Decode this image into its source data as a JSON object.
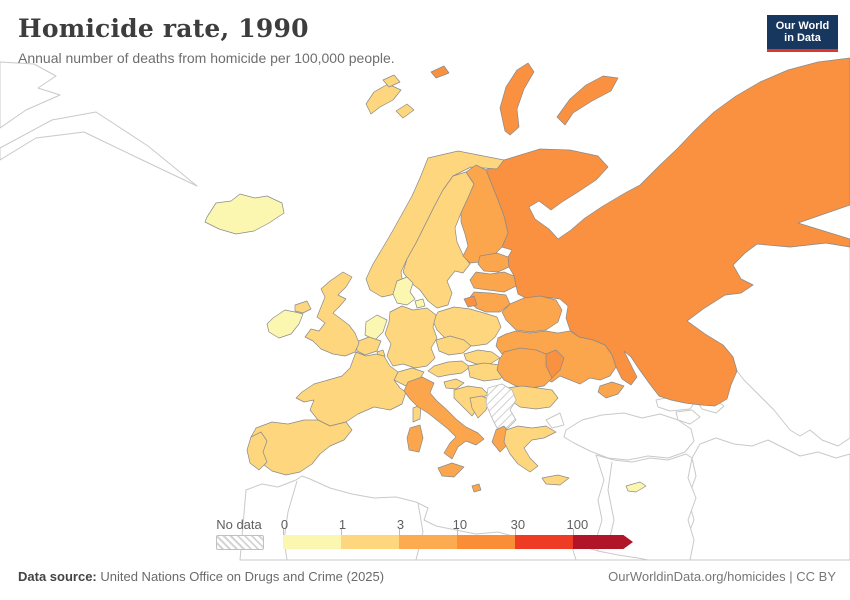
{
  "header": {
    "title": "Homicide rate, 1990",
    "subtitle": "Annual number of deaths from homicide per 100,000 people.",
    "logo_line1": "Our World",
    "logo_line2": "in Data",
    "logo_bg": "#18375f",
    "logo_accent": "#e0352c"
  },
  "legend": {
    "no_data_label": "No data",
    "ticks": [
      "0",
      "1",
      "3",
      "10",
      "30",
      "100"
    ],
    "bands": [
      "#fcf7b0",
      "#fdd67d",
      "#fcab50",
      "#f98e37",
      "#ee3c24",
      "#b01528"
    ]
  },
  "footer": {
    "source_label": "Data source:",
    "source_text": " United Nations Office on Drugs and Crime (2025)",
    "link_text": "OurWorldinData.org/homicides | CC BY"
  },
  "map": {
    "palette": {
      "band0": "#fcf7b0",
      "band1": "#fdd67d",
      "band2": "#fba54d",
      "band3": "#f99140",
      "border": "#8a8a8a",
      "outline": "#c9c9c9",
      "nodata_stroke": "#bdbdbd"
    },
    "band_meaning": {
      "band0": "0-1 homicides per 100,000",
      "band1": "1-3 homicides per 100,000",
      "band2": "3-10 homicides per 100,000",
      "band3": "10-30 homicides per 100,000",
      "nodata": "No data"
    },
    "countries": {
      "iceland": "band0",
      "ireland": "band0",
      "denmark": "band0",
      "denmark-island": "band0",
      "netherlands": "band0",
      "cyprus": "band0",
      "uk": "band1",
      "n-ireland": "band1",
      "norway": "band1",
      "svalbard-a": "band1",
      "svalbard-b": "band1",
      "svalbard-c": "band1",
      "sweden": "band1",
      "france": "band1",
      "corsica": "band1",
      "spain": "band1",
      "portugal": "band1",
      "belgium": "band1",
      "luxembourg": "band1",
      "germany": "band1",
      "switzerland": "band1",
      "austria": "band1",
      "czechia": "band1",
      "poland": "band1",
      "slovakia": "band1",
      "hungary": "band1",
      "slovenia": "band1",
      "croatia": "band1",
      "bosnia": "band1",
      "bulgaria": "band1",
      "greece": "band1",
      "crete": "band1",
      "finland": "band2",
      "estonia": "band2",
      "latvia": "band2",
      "lithuania": "band2",
      "belarus": "band2",
      "ukraine": "band2",
      "crimea": "band2",
      "romania": "band2",
      "italy": "band2",
      "sicily": "band2",
      "sardinia": "band2",
      "albania": "band2",
      "malta": "band2",
      "russia": "band3",
      "novaya-zemlya-a": "band3",
      "novaya-zemlya-b": "band3",
      "franz-josef": "band3",
      "kaliningrad": "band3",
      "moldova": "band3",
      "serbia-region": "nodata",
      "greenland-a": "outline",
      "greenland-b": "outline",
      "turkey-thrace": "outline",
      "turkey": "outline",
      "georgia": "outline",
      "azerbaijan": "outline",
      "armenia": "outline",
      "kazakhstan": "outline",
      "iran-region": "outline",
      "syria-iraq": "outline",
      "north-africa": "outline",
      "na-border-1": "line",
      "na-border-2": "line",
      "na-border-3": "line",
      "levant-border": "line"
    }
  }
}
